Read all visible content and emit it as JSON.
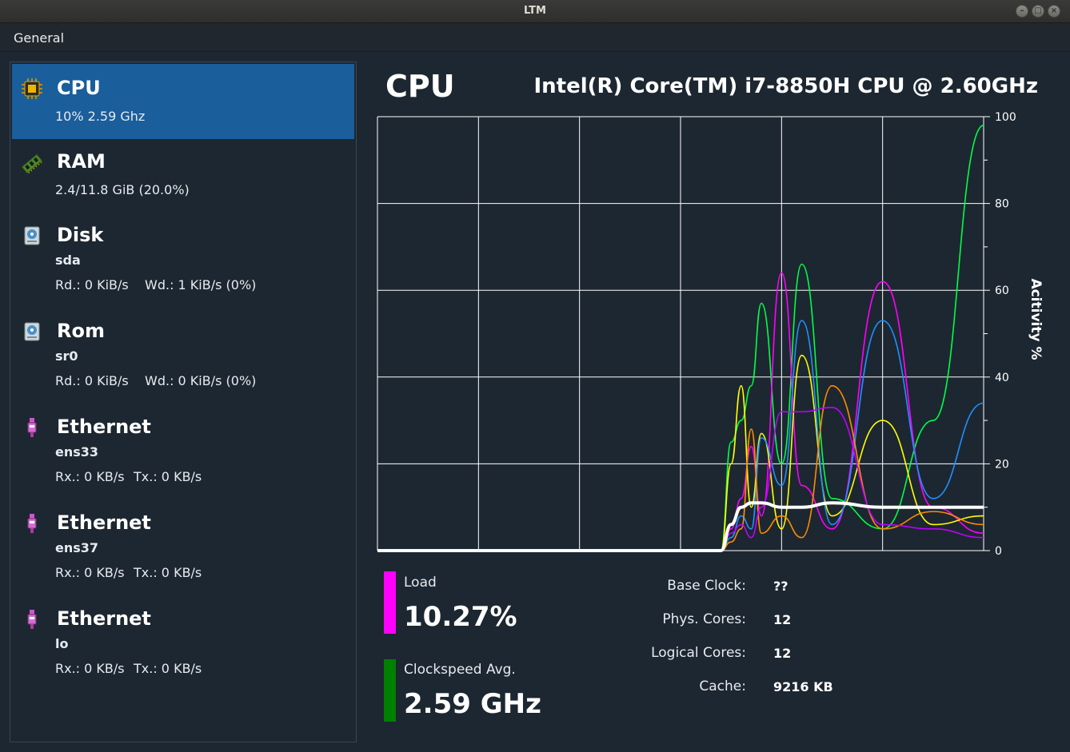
{
  "window": {
    "title": "LTM"
  },
  "menu": {
    "general": "General"
  },
  "sidebar": {
    "cpu": {
      "name": "CPU",
      "detail": "10%  2.59 Ghz"
    },
    "ram": {
      "name": "RAM",
      "detail": "2.4/11.8 GiB (20.0%)"
    },
    "disk": {
      "name": "Disk",
      "device": "sda",
      "read": "Rd.: 0 KiB/s",
      "write": "Wd.: 1 KiB/s (0%)"
    },
    "rom": {
      "name": "Rom",
      "device": "sr0",
      "read": "Rd.: 0 KiB/s",
      "write": "Wd.: 0 KiB/s (0%)"
    },
    "eth1": {
      "name": "Ethernet",
      "device": "ens33",
      "rx": "Rx.: 0 KB/s",
      "tx": "Tx.: 0 KB/s"
    },
    "eth2": {
      "name": "Ethernet",
      "device": "ens37",
      "rx": "Rx.: 0 KB/s",
      "tx": "Tx.: 0 KB/s"
    },
    "eth3": {
      "name": "Ethernet",
      "device": "lo",
      "rx": "Rx.: 0 KB/s",
      "tx": "Tx.: 0 KB/s"
    }
  },
  "main": {
    "title": "CPU",
    "model": "Intel(R) Core(TM) i7-8850H CPU @ 2.60GHz",
    "load_label": "Load",
    "load_value": "10.27%",
    "clock_label": "Clockspeed Avg.",
    "clock_value": "2.59 GHz",
    "info": [
      {
        "label": "Base Clock:",
        "value": "??"
      },
      {
        "label": "Phys. Cores:",
        "value": "12"
      },
      {
        "label": "Logical Cores:",
        "value": "12"
      },
      {
        "label": "Cache:",
        "value": "9216 KB"
      }
    ],
    "colors": {
      "load": "#ff00ff",
      "clock": "#008000",
      "active": "#1a5e9c"
    }
  },
  "chart_data": {
    "type": "line",
    "ylabel": "Acitivity %",
    "ylim": [
      0,
      100
    ],
    "yticks": [
      "0",
      "20",
      "40",
      "60",
      "80",
      "100"
    ],
    "x": [
      0,
      5,
      10,
      15,
      20,
      25,
      30,
      34,
      35,
      36,
      37,
      38,
      40,
      42,
      45,
      50,
      55,
      60
    ],
    "series": [
      {
        "color": "#ffffff",
        "values": [
          0,
          0,
          0,
          0,
          0,
          0,
          0,
          0,
          6,
          10,
          11,
          11,
          10,
          10,
          11,
          10,
          10,
          10
        ]
      },
      {
        "color": "#00ff44",
        "values": [
          0,
          0,
          0,
          0,
          0,
          0,
          0,
          0,
          25,
          30,
          38,
          57,
          20,
          66,
          12,
          5,
          30,
          98
        ]
      },
      {
        "color": "#ff00ff",
        "values": [
          0,
          0,
          0,
          0,
          0,
          0,
          0,
          0,
          5,
          12,
          24,
          8,
          64,
          15,
          5,
          62,
          10,
          4
        ]
      },
      {
        "color": "#ffff00",
        "values": [
          0,
          0,
          0,
          0,
          0,
          0,
          0,
          0,
          20,
          38,
          10,
          27,
          5,
          45,
          8,
          30,
          6,
          8
        ]
      },
      {
        "color": "#1e90ff",
        "values": [
          0,
          0,
          0,
          0,
          0,
          0,
          0,
          0,
          3,
          8,
          5,
          26,
          15,
          53,
          6,
          53,
          12,
          34
        ]
      },
      {
        "color": "#ff8c00",
        "values": [
          0,
          0,
          0,
          0,
          0,
          0,
          0,
          0,
          2,
          5,
          28,
          4,
          8,
          3,
          38,
          5,
          9,
          6
        ]
      },
      {
        "color": "#c000ff",
        "values": [
          0,
          0,
          0,
          0,
          0,
          0,
          0,
          0,
          4,
          6,
          3,
          10,
          32,
          32,
          33,
          6,
          5,
          3
        ]
      }
    ]
  }
}
